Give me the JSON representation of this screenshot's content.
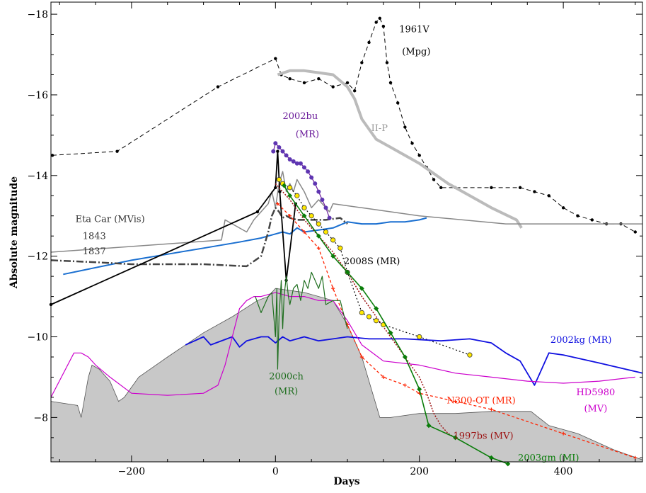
{
  "chart_data": {
    "type": "line",
    "xlabel": "Days",
    "ylabel": "Absolute magnitude",
    "xlim": [
      -312,
      510
    ],
    "ylim": [
      -6.9,
      -18.3
    ],
    "x_ticks": [
      -200,
      0,
      200,
      400
    ],
    "x_tick_labels": [
      "−200",
      "0",
      "200",
      "400"
    ],
    "y_ticks": [
      -8,
      -10,
      -12,
      -14,
      -16,
      -18
    ],
    "y_tick_labels": [
      "−8",
      "−10",
      "−12",
      "−14",
      "−16",
      "−18"
    ],
    "grid": false,
    "series": [
      {
        "key": "bg",
        "color": "#c8c8c8",
        "dash": "",
        "width": 1,
        "fill": true,
        "marker": "",
        "x": [
          -312,
          -275,
          -270,
          -265,
          -260,
          -255,
          -245,
          -230,
          -218,
          -210,
          -190,
          -150,
          -100,
          -60,
          -25,
          -10,
          0,
          40,
          80,
          100,
          120,
          145,
          160,
          200,
          250,
          300,
          355,
          380,
          420,
          470,
          510
        ],
        "y": [
          -8.4,
          -8.3,
          -8.0,
          -8.5,
          -9.0,
          -9.3,
          -9.2,
          -8.9,
          -8.4,
          -8.5,
          -9.0,
          -9.5,
          -10.1,
          -10.5,
          -10.9,
          -11.0,
          -11.2,
          -11.1,
          -10.9,
          -10.3,
          -9.5,
          -8.0,
          -8.0,
          -8.1,
          -8.1,
          -8.15,
          -8.15,
          -7.8,
          -7.6,
          -7.2,
          -6.95
        ]
      },
      {
        "key": "d1961",
        "color": "#000000",
        "dash": "6 4",
        "width": 1,
        "fill": false,
        "marker": "dot",
        "x": [
          -310,
          -220,
          -80,
          0,
          8,
          20,
          40,
          60,
          80,
          100,
          110,
          120,
          130,
          140,
          145,
          150,
          155,
          160,
          170,
          180,
          190,
          200,
          210,
          220,
          230,
          250,
          300,
          340,
          360,
          380,
          400,
          420,
          440,
          460,
          480,
          500
        ],
        "y": [
          -14.5,
          -14.6,
          -16.2,
          -16.9,
          -16.5,
          -16.4,
          -16.3,
          -16.4,
          -16.2,
          -16.3,
          -16.1,
          -16.8,
          -17.3,
          -17.8,
          -17.9,
          -17.7,
          -16.8,
          -16.3,
          -15.8,
          -15.2,
          -14.8,
          -14.5,
          -14.2,
          -13.9,
          -13.7,
          -13.7,
          -13.7,
          -13.7,
          -13.6,
          -13.5,
          -13.2,
          -13.0,
          -12.9,
          -12.8,
          -12.8,
          -12.6
        ]
      },
      {
        "key": "iip",
        "color": "#bbbbbb",
        "dash": "",
        "width": 4,
        "fill": false,
        "marker": "",
        "x": [
          3,
          20,
          40,
          60,
          80,
          100,
          110,
          120,
          140,
          160,
          200,
          240,
          300,
          335,
          342
        ],
        "y": [
          -16.5,
          -16.6,
          -16.6,
          -16.55,
          -16.5,
          -16.2,
          -15.9,
          -15.4,
          -14.9,
          -14.7,
          -14.3,
          -13.8,
          -13.2,
          -12.9,
          -12.7
        ]
      },
      {
        "key": "eta1843",
        "color": "#888888",
        "dash": "",
        "width": 1.5,
        "fill": false,
        "marker": "",
        "x": [
          -312,
          -75,
          -70,
          -40,
          -30,
          -10,
          -5,
          0,
          5,
          10,
          15,
          20,
          25,
          30,
          40,
          50,
          60,
          75,
          80,
          120,
          200,
          320,
          510
        ],
        "y": [
          -12.1,
          -12.4,
          -12.9,
          -12.6,
          -12.9,
          -13.3,
          -13.6,
          -13.2,
          -13.8,
          -14.1,
          -13.6,
          -13.8,
          -13.6,
          -13.9,
          -13.6,
          -13.2,
          -13.4,
          -13.1,
          -13.3,
          -13.2,
          -13.0,
          -12.8,
          -12.8
        ]
      },
      {
        "key": "blue1",
        "color": "#1a6fd0",
        "dash": "",
        "width": 2,
        "fill": false,
        "marker": "",
        "x": [
          -295,
          -200,
          -150,
          -100,
          -50,
          -20,
          0,
          10,
          20,
          30,
          40,
          60,
          80,
          100,
          120,
          140,
          160,
          180,
          200,
          210
        ],
        "y": [
          -11.55,
          -11.9,
          -12.05,
          -12.2,
          -12.35,
          -12.45,
          -12.55,
          -12.6,
          -12.55,
          -12.7,
          -12.6,
          -12.65,
          -12.7,
          -12.85,
          -12.8,
          -12.8,
          -12.85,
          -12.85,
          -12.9,
          -12.95
        ]
      },
      {
        "key": "dashdot",
        "color": "#444444",
        "dash": "10 3 2 3",
        "width": 2.5,
        "fill": false,
        "marker": "",
        "x": [
          -312,
          -250,
          -200,
          -100,
          -40,
          -20,
          -10,
          -5,
          0,
          5,
          10,
          15,
          20,
          30,
          50,
          70,
          90,
          100
        ],
        "y": [
          -11.9,
          -11.85,
          -11.8,
          -11.8,
          -11.75,
          -12.0,
          -12.6,
          -13.0,
          -13.2,
          -13.1,
          -12.95,
          -13.0,
          -12.95,
          -12.9,
          -12.9,
          -12.9,
          -12.95,
          -12.8
        ]
      },
      {
        "key": "black_solid",
        "color": "#000000",
        "dash": "",
        "width": 1.8,
        "fill": false,
        "marker": "dot",
        "x": [
          -312,
          -25,
          0,
          3,
          6,
          15,
          28
        ],
        "y": [
          -10.8,
          -13.1,
          -13.7,
          -14.6,
          -13.6,
          -11.4,
          -13.3
        ]
      },
      {
        "key": "n300",
        "color": "#ff2200",
        "dash": "4 3",
        "width": 1.3,
        "fill": false,
        "marker": "cross",
        "x": [
          3,
          20,
          40,
          60,
          80,
          100,
          120,
          150,
          180,
          200,
          250,
          300,
          400,
          500
        ],
        "y": [
          -13.3,
          -13.0,
          -12.6,
          -12.2,
          -11.2,
          -10.3,
          -9.5,
          -9.0,
          -8.8,
          -8.6,
          -8.4,
          -8.2,
          -7.6,
          -7.0
        ]
      },
      {
        "key": "d1997bs",
        "color": "#9b1010",
        "dash": "2 2",
        "width": 1.5,
        "fill": false,
        "marker": "",
        "x": [
          0,
          20,
          40,
          60,
          80,
          100,
          120,
          140,
          160,
          180,
          200,
          210,
          220,
          230,
          240,
          250,
          260
        ],
        "y": [
          -13.8,
          -13.4,
          -12.9,
          -12.5,
          -12.1,
          -11.6,
          -11.0,
          -10.5,
          -10.0,
          -9.5,
          -9.0,
          -8.6,
          -8.1,
          -7.8,
          -7.6,
          -7.5,
          -7.4
        ]
      },
      {
        "key": "d2008s",
        "color": "#000000",
        "dash": "2 3",
        "width": 1.2,
        "fill": false,
        "marker": "yellow",
        "x": [
          5,
          10,
          20,
          30,
          40,
          50,
          60,
          70,
          80,
          90,
          100,
          120,
          130,
          140,
          150,
          200,
          270
        ],
        "y": [
          -13.9,
          -13.8,
          -13.7,
          -13.5,
          -13.2,
          -13.0,
          -12.8,
          -12.6,
          -12.4,
          -12.2,
          -11.6,
          -10.6,
          -10.5,
          -10.4,
          -10.3,
          -10.0,
          -9.55
        ]
      },
      {
        "key": "d2002bu",
        "color": "#6a1b9a",
        "dash": "",
        "width": 1.2,
        "fill": false,
        "marker": "purple",
        "x": [
          -3,
          0,
          5,
          10,
          15,
          20,
          25,
          30,
          35,
          40,
          45,
          50,
          55,
          60,
          65,
          70,
          75
        ],
        "y": [
          -14.6,
          -14.8,
          -14.7,
          -14.6,
          -14.5,
          -14.4,
          -14.35,
          -14.3,
          -14.3,
          -14.2,
          -14.1,
          -13.95,
          -13.8,
          -13.6,
          -13.4,
          -13.2,
          -12.95
        ]
      },
      {
        "key": "d2002kg",
        "color": "#1010e0",
        "dash": "",
        "width": 1.8,
        "fill": false,
        "marker": "",
        "x": [
          -125,
          -100,
          -90,
          -60,
          -50,
          -40,
          -20,
          -10,
          0,
          10,
          20,
          40,
          60,
          80,
          100,
          130,
          180,
          230,
          270,
          300,
          320,
          340,
          360,
          380,
          400,
          450,
          510
        ],
        "y": [
          -9.8,
          -10.0,
          -9.8,
          -10.0,
          -9.75,
          -9.9,
          -10.0,
          -10.0,
          -9.85,
          -10.0,
          -9.9,
          -10.0,
          -9.9,
          -9.95,
          -10.0,
          -9.95,
          -9.95,
          -9.9,
          -9.95,
          -9.85,
          -9.6,
          -9.4,
          -8.8,
          -9.6,
          -9.55,
          -9.35,
          -9.1
        ]
      },
      {
        "key": "hd5980",
        "color": "#cc00cc",
        "dash": "",
        "width": 1.2,
        "fill": false,
        "marker": "",
        "x": [
          -312,
          -280,
          -270,
          -260,
          -250,
          -230,
          -200,
          -150,
          -100,
          -80,
          -70,
          -60,
          -50,
          -40,
          -30,
          -20,
          0,
          20,
          40,
          60,
          80,
          100,
          120,
          150,
          200,
          250,
          300,
          350,
          400,
          450,
          500
        ],
        "y": [
          -8.5,
          -9.6,
          -9.6,
          -9.5,
          -9.3,
          -9.0,
          -8.6,
          -8.55,
          -8.6,
          -8.8,
          -9.3,
          -10.0,
          -10.7,
          -10.9,
          -11.0,
          -11.0,
          -11.1,
          -11.0,
          -11.0,
          -10.9,
          -10.9,
          -10.4,
          -9.8,
          -9.4,
          -9.3,
          -9.1,
          -9.0,
          -8.9,
          -8.85,
          -8.9,
          -9.0
        ]
      },
      {
        "key": "d2000ch",
        "color": "#1e6e1e",
        "dash": "",
        "width": 1.2,
        "fill": false,
        "marker": "",
        "x": [
          -28,
          -20,
          -15,
          -10,
          -5,
          0,
          2,
          3,
          5,
          8,
          10,
          12,
          15,
          18,
          20,
          25,
          30,
          35,
          40,
          45,
          50,
          55,
          60,
          65,
          70,
          80,
          90,
          100
        ],
        "y": [
          -11.0,
          -10.6,
          -10.8,
          -11.0,
          -11.1,
          -10.0,
          -11.2,
          -9.2,
          -10.5,
          -11.4,
          -10.2,
          -11.0,
          -11.5,
          -11.0,
          -10.8,
          -11.2,
          -11.3,
          -10.9,
          -11.4,
          -11.2,
          -11.6,
          -11.4,
          -11.2,
          -11.5,
          -10.8,
          -10.9,
          -10.9,
          -10.2
        ]
      },
      {
        "key": "d2003gm",
        "color": "#0a7d0a",
        "dash": "",
        "width": 1.6,
        "fill": false,
        "marker": "diamond",
        "x": [
          12,
          20,
          40,
          60,
          80,
          100,
          120,
          140,
          160,
          180,
          200,
          213,
          250,
          300,
          323
        ],
        "y": [
          -13.75,
          -13.5,
          -13.0,
          -12.5,
          -12.0,
          -11.6,
          -11.2,
          -10.7,
          -10.1,
          -9.5,
          -8.7,
          -7.8,
          -7.5,
          -7.0,
          -6.85
        ]
      }
    ],
    "labels": [
      {
        "key": "l1961",
        "text": "1961V",
        "color": "#000000",
        "x": 172,
        "y": -17.55,
        "anchor": "start"
      },
      {
        "key": "l1961sub",
        "text": "(Mpg)",
        "color": "#000000",
        "x": 176,
        "y": -17.0,
        "anchor": "start"
      },
      {
        "key": "liip",
        "text": "II-P",
        "color": "#999999",
        "x": 133,
        "y": -15.1,
        "anchor": "start"
      },
      {
        "key": "l2002bu",
        "text": "2002bu",
        "color": "#6a1b9a",
        "x": 10,
        "y": -15.4,
        "anchor": "start"
      },
      {
        "key": "l2002busub",
        "text": "(MR)",
        "color": "#6a1b9a",
        "x": 28,
        "y": -14.95,
        "anchor": "start"
      },
      {
        "key": "leta",
        "text": "Eta Car (MVis)",
        "color": "#333333",
        "x": -278,
        "y": -12.85,
        "anchor": "start"
      },
      {
        "key": "l1843",
        "text": "1843",
        "color": "#333333",
        "x": -268,
        "y": -12.42,
        "anchor": "start"
      },
      {
        "key": "l1837",
        "text": "1837",
        "color": "#333333",
        "x": -268,
        "y": -12.05,
        "anchor": "start"
      },
      {
        "key": "l2008s",
        "text": "2008S (MR)",
        "color": "#000000",
        "x": 95,
        "y": -11.8,
        "anchor": "start"
      },
      {
        "key": "l2002kg",
        "text": "2002kg (MR)",
        "color": "#1010e0",
        "x": 382,
        "y": -9.85,
        "anchor": "start"
      },
      {
        "key": "l2000ch",
        "text": "2000ch",
        "color": "#1e6e1e",
        "x": 15,
        "y": -8.95,
        "anchor": "middle"
      },
      {
        "key": "l2000chsub",
        "text": "(MR)",
        "color": "#1e6e1e",
        "x": 15,
        "y": -8.58,
        "anchor": "middle"
      },
      {
        "key": "ln300",
        "text": "N300-OT (MR)",
        "color": "#ff2200",
        "x": 238,
        "y": -8.35,
        "anchor": "start"
      },
      {
        "key": "lhd",
        "text": "HD5980",
        "color": "#cc00cc",
        "x": 445,
        "y": -8.55,
        "anchor": "middle"
      },
      {
        "key": "lhdsub",
        "text": "(MV)",
        "color": "#cc00cc",
        "x": 445,
        "y": -8.15,
        "anchor": "middle"
      },
      {
        "key": "l1997bs",
        "text": "1997bs (MV)",
        "color": "#9b1010",
        "x": 247,
        "y": -7.47,
        "anchor": "start"
      },
      {
        "key": "l2003gm",
        "text": "2003gm (MI)",
        "color": "#0a7d0a",
        "x": 337,
        "y": -6.93,
        "anchor": "start"
      }
    ]
  }
}
